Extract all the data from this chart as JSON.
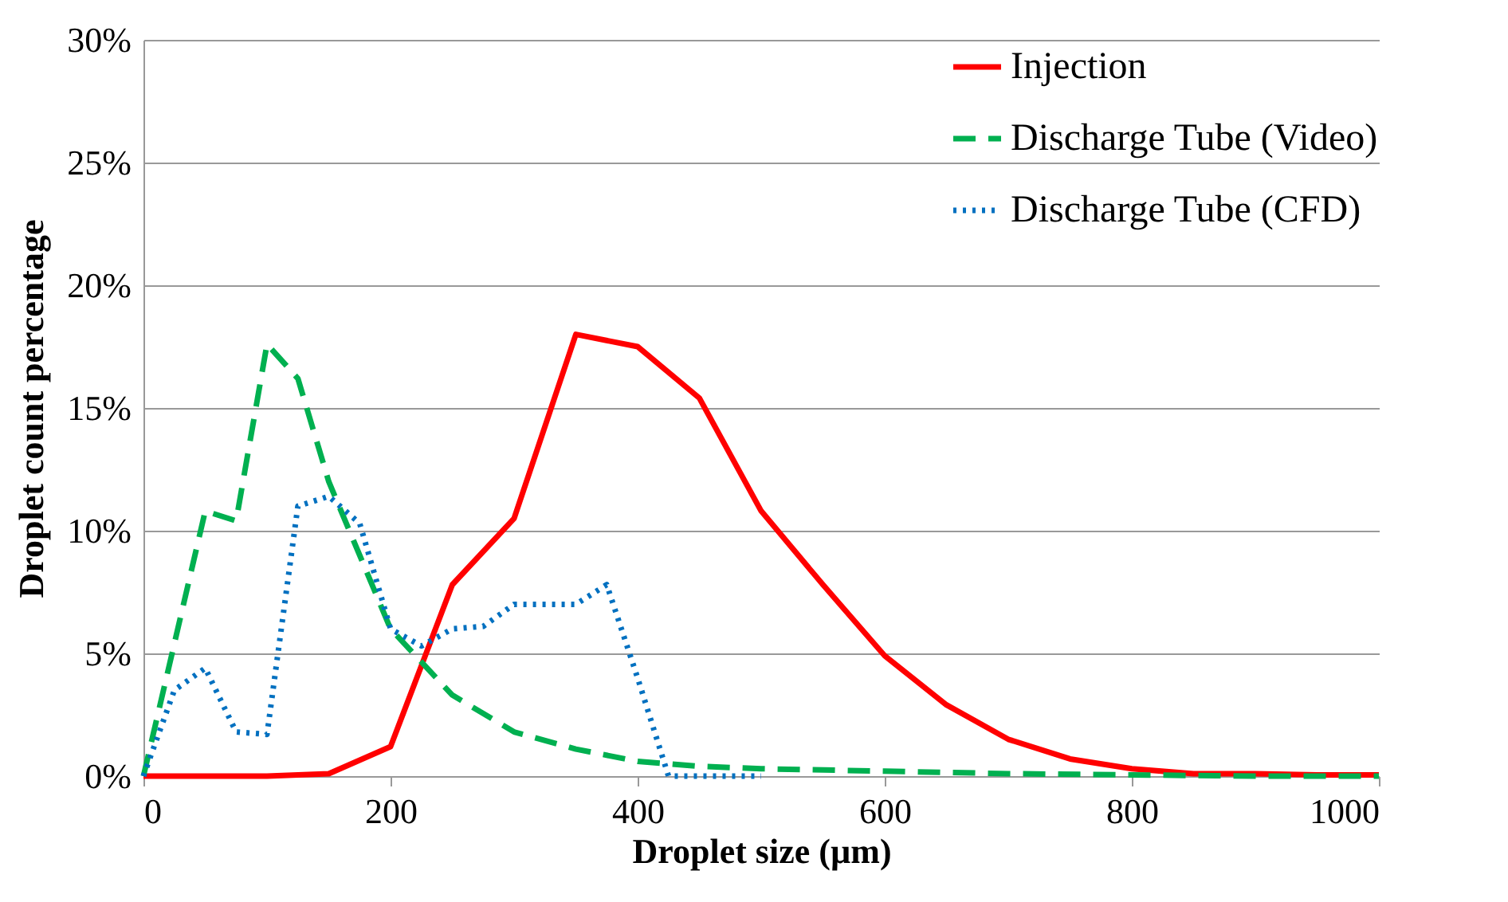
{
  "chart_data": {
    "type": "line",
    "xlabel": "Droplet size (µm)",
    "ylabel": "Droplet count percentage",
    "xlim": [
      0,
      1000
    ],
    "xticks": [
      0,
      200,
      400,
      600,
      800,
      1000
    ],
    "ylim": [
      0,
      30
    ],
    "yticks": [
      {
        "value": 0,
        "label": "0%"
      },
      {
        "value": 5,
        "label": "5%"
      },
      {
        "value": 10,
        "label": "10%"
      },
      {
        "value": 15,
        "label": "15%"
      },
      {
        "value": 20,
        "label": "20%"
      },
      {
        "value": 25,
        "label": "25%"
      },
      {
        "value": 30,
        "label": "30%"
      }
    ],
    "grid": "y",
    "legend": "top right",
    "marker": "none",
    "series": [
      {
        "name": "Injection",
        "color": "#ff0000",
        "line_style": "solid",
        "x": [
          0,
          50,
          100,
          150,
          200,
          250,
          300,
          350,
          400,
          450,
          500,
          550,
          600,
          650,
          700,
          750,
          800,
          850,
          900,
          950,
          1000
        ],
        "values": [
          0,
          0,
          0,
          0.1,
          1.2,
          7.8,
          10.5,
          18,
          17.5,
          15.4,
          10.8,
          7.8,
          4.9,
          2.9,
          1.5,
          0.7,
          0.3,
          0.1,
          0.1,
          0.05,
          0.05
        ]
      },
      {
        "name": "Discharge Tube (Video)",
        "color": "#00b050",
        "line_style": "dashed",
        "x": [
          0,
          50,
          75,
          100,
          125,
          150,
          200,
          250,
          300,
          350,
          400,
          450,
          500,
          600,
          700,
          800,
          900,
          1000
        ],
        "values": [
          0,
          10.8,
          10.4,
          17.6,
          16.2,
          12,
          6,
          3.3,
          1.8,
          1.1,
          0.6,
          0.4,
          0.3,
          0.2,
          0.1,
          0.05,
          0,
          0
        ]
      },
      {
        "name": "Discharge Tube (CFD)",
        "color": "#0070c0",
        "line_style": "dotted",
        "x": [
          0,
          25,
          50,
          75,
          100,
          125,
          150,
          175,
          200,
          225,
          250,
          275,
          300,
          325,
          350,
          375,
          400,
          425,
          450,
          475,
          500
        ],
        "values": [
          0,
          3.5,
          4.4,
          1.8,
          1.7,
          11,
          11.4,
          10.3,
          6,
          5.3,
          6,
          6.1,
          7,
          7,
          7,
          7.8,
          4,
          0,
          0,
          0,
          0
        ]
      }
    ]
  }
}
